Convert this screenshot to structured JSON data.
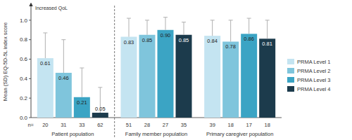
{
  "chart_data": {
    "type": "bar",
    "y_label": "Mean (SD) EQ-5D-5L index score",
    "annotation": "Increased QoL",
    "n_label": "n=",
    "categories": [
      "Patient population",
      "Family member population",
      "Primary caregiver population"
    ],
    "series": [
      {
        "name": "PRMA Level 1",
        "color": "#c4e4f1",
        "values": [
          0.61,
          0.83,
          0.84
        ],
        "value_labels": [
          "0.61",
          "0.83",
          "0.84"
        ],
        "errors": [
          0.26,
          0.19,
          0.16
        ],
        "n": [
          20,
          51,
          39
        ]
      },
      {
        "name": "PRMA Level 2",
        "color": "#7fc5dc",
        "values": [
          0.46,
          0.85,
          0.78
        ],
        "value_labels": [
          "0.46",
          "0.85",
          "0.78"
        ],
        "errors": [
          0.34,
          0.15,
          0.22
        ],
        "n": [
          31,
          28,
          18
        ]
      },
      {
        "name": "PRMA Level 3",
        "color": "#3ba4c4",
        "values": [
          0.21,
          0.9,
          0.86
        ],
        "value_labels": [
          "0.21",
          "0.90",
          "0.86"
        ],
        "errors": [
          0.3,
          0.13,
          0.16
        ],
        "n": [
          33,
          27,
          17
        ]
      },
      {
        "name": "PRMA Level 4",
        "color": "#1c3b4c",
        "values": [
          0.05,
          0.85,
          0.81
        ],
        "value_labels": [
          "0.05",
          "0.85",
          "0.81"
        ],
        "errors": [
          0.26,
          0.13,
          0.19
        ],
        "n": [
          62,
          35,
          18
        ]
      }
    ],
    "ylim": [
      0,
      1.15
    ],
    "yticks": [
      {
        "value": 0,
        "label": "0.0"
      },
      {
        "value": 0.2,
        "label": "0.2"
      },
      {
        "value": 0.4,
        "label": "0.4"
      },
      {
        "value": 0.6,
        "label": "0.6"
      },
      {
        "value": 0.8,
        "label": "0.8"
      },
      {
        "value": 1,
        "label": "1.0"
      }
    ],
    "grid": false,
    "legend": "right",
    "data_labels": true
  }
}
